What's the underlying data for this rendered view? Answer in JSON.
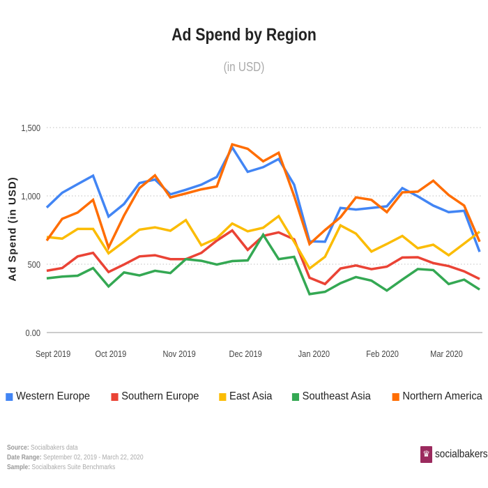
{
  "chart_data": {
    "type": "line",
    "title": "Ad Spend by Region",
    "subtitle": "(in USD)",
    "xlabel": "",
    "ylabel": "Ad Spend (in USD)",
    "ylim": [
      0,
      1500
    ],
    "y_ticks": [
      "0.00",
      "500",
      "1,000",
      "1,500"
    ],
    "y_tick_values": [
      0,
      500,
      1000,
      1500
    ],
    "x_ticks": [
      {
        "label": "Sept 2019",
        "date": "2019-09-02"
      },
      {
        "label": "Oct 2019",
        "date": "2019-10-01"
      },
      {
        "label": "Nov 2019",
        "date": "2019-11-01"
      },
      {
        "label": "Dec 2019",
        "date": "2019-12-01"
      },
      {
        "label": "Jan 2020",
        "date": "2020-01-01"
      },
      {
        "label": "Feb 2020",
        "date": "2020-02-01"
      },
      {
        "label": "Mar 2020",
        "date": "2020-03-01"
      }
    ],
    "x": [
      "2019-09-02",
      "2019-09-09",
      "2019-09-16",
      "2019-09-23",
      "2019-09-30",
      "2019-10-07",
      "2019-10-14",
      "2019-10-21",
      "2019-10-28",
      "2019-11-04",
      "2019-11-11",
      "2019-11-18",
      "2019-11-25",
      "2019-12-02",
      "2019-12-09",
      "2019-12-16",
      "2019-12-23",
      "2019-12-30",
      "2020-01-06",
      "2020-01-13",
      "2020-01-20",
      "2020-01-27",
      "2020-02-03",
      "2020-02-10",
      "2020-02-17",
      "2020-02-24",
      "2020-03-02",
      "2020-03-09",
      "2020-03-16"
    ],
    "grid": true,
    "legend_position": "bottom",
    "series": [
      {
        "name": "Western Europe",
        "color": "#4285F4",
        "values": [
          915,
          1023,
          1086,
          1148,
          849,
          941,
          1094,
          1120,
          1011,
          1045,
          1082,
          1139,
          1355,
          1176,
          1210,
          1270,
          1082,
          668,
          665,
          912,
          900,
          912,
          924,
          1057,
          997,
          929,
          881,
          891,
          591
        ]
      },
      {
        "name": "Southern Europe",
        "color": "#EA4335",
        "values": [
          452,
          472,
          557,
          583,
          443,
          498,
          557,
          566,
          537,
          537,
          583,
          673,
          747,
          605,
          707,
          733,
          682,
          401,
          355,
          469,
          491,
          464,
          482,
          549,
          551,
          508,
          486,
          448,
          392
        ]
      },
      {
        "name": "East Asia",
        "color": "#FBBC04",
        "values": [
          699,
          687,
          758,
          758,
          580,
          665,
          753,
          770,
          745,
          823,
          639,
          690,
          798,
          741,
          767,
          852,
          665,
          469,
          554,
          784,
          724,
          593,
          648,
          707,
          617,
          643,
          566,
          651,
          738
        ]
      },
      {
        "name": "Southeast Asia",
        "color": "#34A853",
        "values": [
          397,
          409,
          416,
          472,
          337,
          440,
          418,
          452,
          435,
          537,
          525,
          498,
          523,
          528,
          716,
          537,
          554,
          281,
          298,
          361,
          406,
          380,
          307,
          387,
          465,
          457,
          355,
          387,
          315
        ]
      },
      {
        "name": "Northern America",
        "color": "#FF6D01",
        "values": [
          673,
          832,
          878,
          971,
          622,
          856,
          1057,
          1150,
          989,
          1018,
          1048,
          1069,
          1377,
          1345,
          1253,
          1316,
          1000,
          648,
          750,
          844,
          989,
          971,
          881,
          1026,
          1031,
          1111,
          1006,
          929,
          665
        ]
      }
    ]
  },
  "footer": {
    "source_label": "Source:",
    "source": "Socialbakers data",
    "range_label": "Date Range:",
    "range": "September 02, 2019 - March 22, 2020",
    "sample_label": "Sample:",
    "sample": "Socialbakers Suite Benchmarks"
  },
  "logo": {
    "text": "socialbakers",
    "color": "#9b2a5e"
  }
}
